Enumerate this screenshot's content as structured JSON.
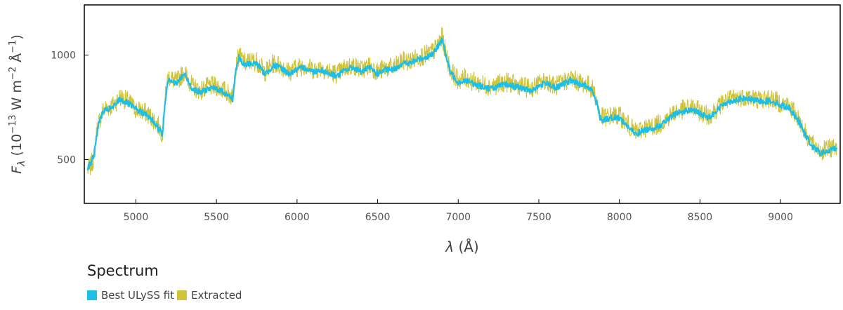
{
  "chart_data": {
    "type": "line",
    "xlabel_symbol": "λ",
    "xlabel_unit": " (Å)",
    "ylabel_symbol": "F",
    "ylabel_sub": "λ",
    "ylabel_base": "10",
    "ylabel_exp": "−13",
    "ylabel_unit_a": " W m",
    "ylabel_unit_a_exp": "−2",
    "ylabel_unit_b": " Å",
    "ylabel_unit_b_exp": "−1",
    "xlim": [
      4680,
      9370
    ],
    "ylim": [
      290,
      1240
    ],
    "xticks": [
      5000,
      5500,
      6000,
      6500,
      7000,
      7500,
      8000,
      8500,
      9000
    ],
    "yticks": [
      500,
      1000
    ],
    "legend_title": "Spectrum",
    "colors": {
      "fit": "#1bbfe8",
      "extracted": "#cfc33a"
    },
    "series": [
      {
        "name": "Best ULySS fit",
        "key": "fit",
        "x": [
          4700,
          4720,
          4740,
          4760,
          4780,
          4800,
          4830,
          4860,
          4900,
          4950,
          5000,
          5050,
          5100,
          5150,
          5165,
          5180,
          5200,
          5250,
          5300,
          5350,
          5400,
          5450,
          5500,
          5550,
          5600,
          5620,
          5640,
          5660,
          5680,
          5700,
          5750,
          5800,
          5820,
          5850,
          5900,
          5950,
          6000,
          6050,
          6100,
          6150,
          6200,
          6250,
          6300,
          6350,
          6400,
          6450,
          6500,
          6550,
          6600,
          6650,
          6700,
          6750,
          6800,
          6850,
          6880,
          6900,
          6910,
          6920,
          6950,
          7000,
          7050,
          7100,
          7150,
          7200,
          7250,
          7300,
          7350,
          7400,
          7450,
          7500,
          7550,
          7600,
          7650,
          7700,
          7750,
          7800,
          7840,
          7860,
          7880,
          7900,
          7950,
          8000,
          8050,
          8100,
          8150,
          8200,
          8250,
          8300,
          8350,
          8400,
          8450,
          8500,
          8550,
          8600,
          8650,
          8700,
          8750,
          8800,
          8850,
          8900,
          8950,
          9000,
          9050,
          9100,
          9130,
          9150,
          9200,
          9250,
          9300,
          9350
        ],
        "y": [
          460,
          480,
          520,
          640,
          700,
          730,
          740,
          750,
          790,
          770,
          740,
          720,
          690,
          640,
          620,
          770,
          890,
          860,
          910,
          840,
          820,
          840,
          840,
          820,
          790,
          930,
          990,
          960,
          950,
          960,
          960,
          910,
          920,
          950,
          940,
          910,
          930,
          940,
          920,
          930,
          910,
          900,
          930,
          940,
          920,
          940,
          910,
          930,
          930,
          960,
          960,
          980,
          990,
          1010,
          1050,
          1080,
          1040,
          1010,
          920,
          870,
          880,
          860,
          850,
          840,
          850,
          860,
          850,
          840,
          830,
          850,
          870,
          840,
          860,
          880,
          860,
          850,
          820,
          770,
          700,
          690,
          700,
          700,
          660,
          620,
          640,
          650,
          660,
          690,
          720,
          730,
          740,
          720,
          700,
          730,
          770,
          780,
          790,
          790,
          780,
          780,
          780,
          760,
          750,
          700,
          660,
          620,
          560,
          530,
          540,
          560
        ]
      },
      {
        "name": "Extracted",
        "key": "extracted",
        "x": [
          4700,
          4720,
          4740,
          4760,
          4780,
          4800,
          4830,
          4860,
          4900,
          4950,
          5000,
          5050,
          5100,
          5150,
          5165,
          5180,
          5200,
          5250,
          5300,
          5350,
          5400,
          5450,
          5500,
          5550,
          5600,
          5620,
          5640,
          5660,
          5680,
          5700,
          5750,
          5800,
          5820,
          5850,
          5900,
          5950,
          6000,
          6050,
          6100,
          6150,
          6200,
          6250,
          6300,
          6350,
          6400,
          6450,
          6500,
          6550,
          6600,
          6650,
          6700,
          6750,
          6800,
          6850,
          6880,
          6900,
          6910,
          6920,
          6950,
          7000,
          7050,
          7100,
          7150,
          7200,
          7250,
          7300,
          7350,
          7400,
          7450,
          7500,
          7550,
          7600,
          7650,
          7700,
          7750,
          7800,
          7840,
          7860,
          7880,
          7900,
          7950,
          8000,
          8050,
          8100,
          8150,
          8200,
          8250,
          8300,
          8350,
          8400,
          8450,
          8500,
          8550,
          8600,
          8650,
          8700,
          8750,
          8800,
          8850,
          8900,
          8950,
          9000,
          9050,
          9100,
          9130,
          9150,
          9200,
          9250,
          9300,
          9350
        ],
        "y": [
          450,
          470,
          510,
          650,
          700,
          740,
          750,
          760,
          800,
          780,
          740,
          730,
          700,
          650,
          620,
          780,
          900,
          870,
          920,
          850,
          830,
          850,
          850,
          830,
          800,
          940,
          1000,
          980,
          960,
          970,
          970,
          920,
          930,
          960,
          950,
          920,
          940,
          950,
          930,
          940,
          920,
          910,
          940,
          950,
          930,
          950,
          920,
          940,
          940,
          970,
          970,
          990,
          1000,
          1020,
          1060,
          1090,
          1050,
          1020,
          930,
          880,
          890,
          870,
          860,
          850,
          860,
          870,
          860,
          850,
          840,
          860,
          880,
          850,
          870,
          890,
          870,
          860,
          830,
          780,
          710,
          700,
          710,
          710,
          670,
          630,
          650,
          660,
          670,
          700,
          730,
          740,
          750,
          730,
          710,
          740,
          780,
          790,
          800,
          800,
          790,
          790,
          790,
          770,
          760,
          710,
          670,
          630,
          570,
          540,
          550,
          570
        ]
      }
    ]
  }
}
